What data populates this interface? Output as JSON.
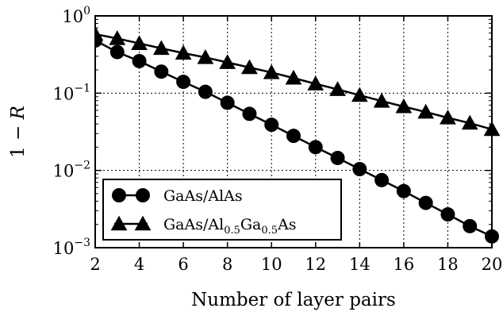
{
  "chart_data": {
    "type": "line",
    "title": "",
    "xlabel": "Number of layer pairs",
    "ylabel": "1 − R",
    "ylabel_parts": {
      "lhs": "1 − ",
      "var": "R"
    },
    "xlim": [
      2,
      20
    ],
    "ylim": [
      0.001,
      1
    ],
    "yscale": "log",
    "grid": true,
    "grid_style": "dotted",
    "legend_position": "lower-left",
    "x_ticks": [
      "2",
      "4",
      "6",
      "8",
      "10",
      "12",
      "14",
      "16",
      "18",
      "20"
    ],
    "y_ticks": [
      {
        "value": 1,
        "base": "10",
        "exp": "0"
      },
      {
        "value": 0.1,
        "base": "10",
        "exp": "−1"
      },
      {
        "value": 0.01,
        "base": "10",
        "exp": "−2"
      },
      {
        "value": 0.001,
        "base": "10",
        "exp": "−3"
      }
    ],
    "series": [
      {
        "name": "GaAs/AlAs",
        "name_parts": [
          [
            "GaAs/AlAs",
            false
          ]
        ],
        "marker": "circle",
        "color": "#000000",
        "x": [
          2,
          3,
          4,
          5,
          6,
          7,
          8,
          9,
          10,
          11,
          12,
          13,
          14,
          15,
          16,
          17,
          18,
          19,
          20
        ],
        "y": [
          0.48,
          0.34,
          0.26,
          0.19,
          0.14,
          0.104,
          0.075,
          0.054,
          0.039,
          0.028,
          0.02,
          0.0145,
          0.0104,
          0.0075,
          0.0054,
          0.0038,
          0.0027,
          0.0019,
          0.0014
        ]
      },
      {
        "name": "GaAs/Al0.5Ga0.5As",
        "name_parts": [
          [
            "GaAs/Al",
            false
          ],
          [
            "0.5",
            true
          ],
          [
            "Ga",
            false
          ],
          [
            "0.5",
            true
          ],
          [
            "As",
            false
          ]
        ],
        "marker": "triangle",
        "color": "#000000",
        "x": [
          2,
          3,
          4,
          5,
          6,
          7,
          8,
          9,
          10,
          11,
          12,
          13,
          14,
          15,
          16,
          17,
          18,
          19,
          20
        ],
        "y": [
          0.58,
          0.51,
          0.44,
          0.38,
          0.33,
          0.29,
          0.25,
          0.215,
          0.185,
          0.157,
          0.132,
          0.112,
          0.094,
          0.079,
          0.067,
          0.057,
          0.048,
          0.041,
          0.034
        ]
      }
    ]
  }
}
